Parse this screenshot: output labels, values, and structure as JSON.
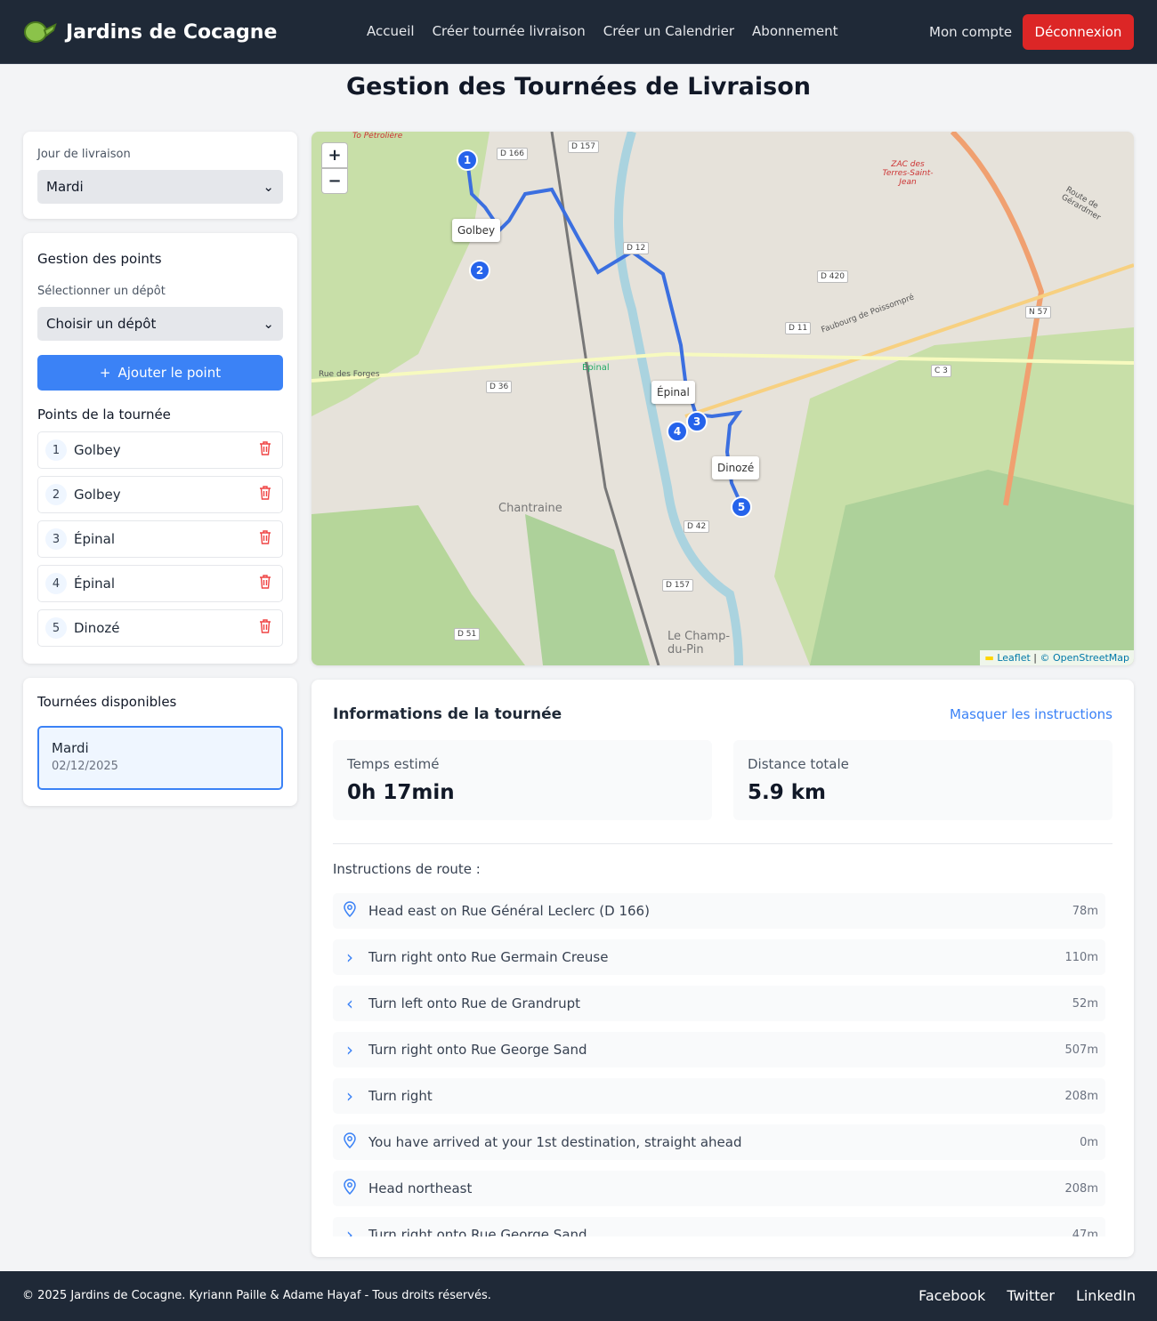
{
  "header": {
    "brand": "Jardins de Cocagne",
    "nav": [
      "Accueil",
      "Créer tournée livraison",
      "Créer un Calendrier",
      "Abonnement"
    ],
    "account": "Mon compte",
    "logout": "Déconnexion"
  },
  "page_title": "Gestion des Tournées de Livraison",
  "day": {
    "label": "Jour de livraison",
    "value": "Mardi"
  },
  "points": {
    "title": "Gestion des points",
    "depot_label": "Sélectionner un dépôt",
    "depot_value": "Choisir un dépôt",
    "add_label": "Ajouter le point",
    "list_title": "Points de la tournée",
    "items": [
      {
        "n": "1",
        "name": "Golbey"
      },
      {
        "n": "2",
        "name": "Golbey"
      },
      {
        "n": "3",
        "name": "Épinal"
      },
      {
        "n": "4",
        "name": "Épinal"
      },
      {
        "n": "5",
        "name": "Dinozé"
      }
    ]
  },
  "tours": {
    "title": "Tournées disponibles",
    "items": [
      {
        "day": "Mardi",
        "date": "02/12/2025"
      }
    ]
  },
  "map": {
    "zoom_in": "+",
    "zoom_out": "−",
    "attribution_leaflet": "Leaflet",
    "attribution_osm": "© OpenStreetMap",
    "labels": {
      "golbey": "Golbey",
      "epinal": "Épinal",
      "dinoze": "Dinozé",
      "chantraine": "Chantraine",
      "epinal_town": "Épinal",
      "champ": "Le Champ-du-Pin",
      "d166": "D 166",
      "d157": "D 157",
      "d12": "D 12",
      "d420": "D 420",
      "d11": "D 11",
      "n57": "N 57",
      "c3": "C 3",
      "d36": "D 36",
      "d42": "D 42",
      "d51": "D 51",
      "d157b": "D 157",
      "forges": "Rue des Forges",
      "poissompre": "Faubourg de Poissompré",
      "gerardmer": "Route de Gérardmer",
      "zac": "ZAC des Terres-Saint-Jean",
      "petroliere": "To Pétrolière"
    }
  },
  "info": {
    "title": "Informations de la tournée",
    "toggle": "Masquer les instructions",
    "time_label": "Temps estimé",
    "time_value": "0h 17min",
    "dist_label": "Distance totale",
    "dist_value": "5.9 km",
    "instructions_title": "Instructions de route :",
    "instructions": [
      {
        "icon": "location-pin",
        "text": "Head east on Rue Général Leclerc (D 166)",
        "dist": "78m"
      },
      {
        "icon": "chevron-right",
        "text": "Turn right onto Rue Germain Creuse",
        "dist": "110m"
      },
      {
        "icon": "chevron-left",
        "text": "Turn left onto Rue de Grandrupt",
        "dist": "52m"
      },
      {
        "icon": "chevron-right",
        "text": "Turn right onto Rue George Sand",
        "dist": "507m"
      },
      {
        "icon": "chevron-right",
        "text": "Turn right",
        "dist": "208m"
      },
      {
        "icon": "location-pin",
        "text": "You have arrived at your 1st destination, straight ahead",
        "dist": "0m"
      },
      {
        "icon": "location-pin",
        "text": "Head northeast",
        "dist": "208m"
      },
      {
        "icon": "chevron-right",
        "text": "Turn right onto Rue George Sand",
        "dist": "47m"
      }
    ]
  },
  "footer": {
    "copyright": "© 2025 Jardins de Cocagne. Kyriann Paille & Adame Hayaf - Tous droits réservés.",
    "links": [
      "Facebook",
      "Twitter",
      "LinkedIn"
    ]
  },
  "colors": {
    "header": "#1f2937",
    "primary": "#3b82f6",
    "danger": "#dc2626",
    "route": "#3b6fe0"
  }
}
